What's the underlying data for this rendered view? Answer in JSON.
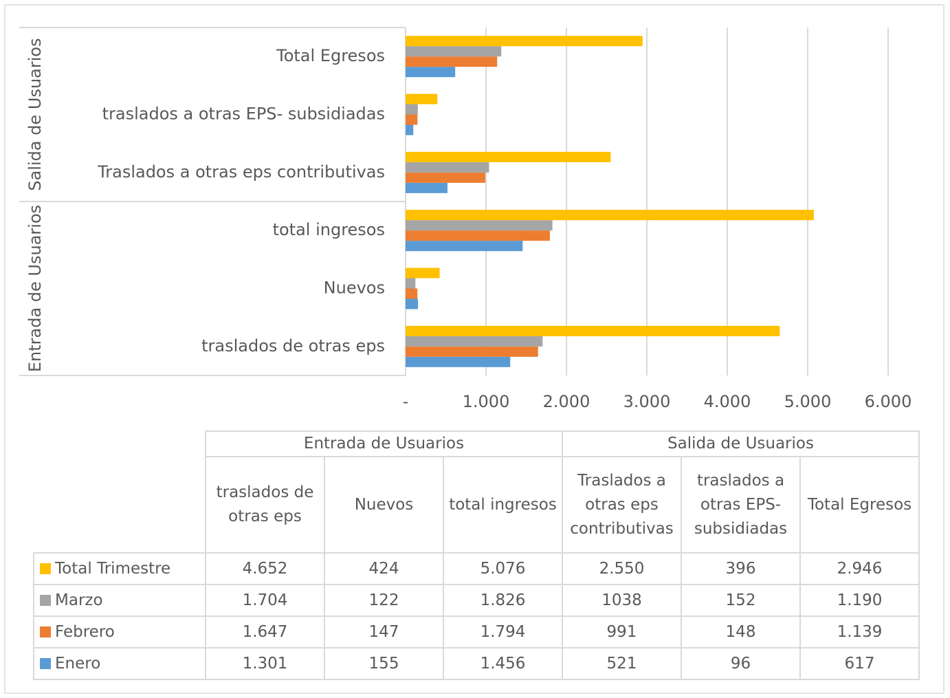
{
  "chart_data": {
    "type": "bar",
    "orientation": "horizontal",
    "groups": [
      {
        "name": "Entrada de Usuarios",
        "categories": [
          "traslados de otras eps",
          "Nuevos",
          "total ingresos"
        ]
      },
      {
        "name": "Salida de Usuarios",
        "categories": [
          "Traslados a otras eps contributivas",
          "traslados a otras EPS- subsidiadas",
          "Total Egresos"
        ]
      }
    ],
    "series": [
      {
        "name": "Enero",
        "color": "#5b9bd5",
        "values": [
          1301,
          155,
          1456,
          521,
          96,
          617
        ],
        "value_labels": [
          "1.301",
          "155",
          "1.456",
          "521",
          "96",
          "617"
        ]
      },
      {
        "name": "Febrero",
        "color": "#ed7d31",
        "values": [
          1647,
          147,
          1794,
          991,
          148,
          1139
        ],
        "value_labels": [
          "1.647",
          "147",
          "1.794",
          "991",
          "148",
          "1.139"
        ]
      },
      {
        "name": "Marzo",
        "color": "#a5a5a5",
        "values": [
          1704,
          122,
          1826,
          1038,
          152,
          1190
        ],
        "value_labels": [
          "1.704",
          "122",
          "1.826",
          "1038",
          "152",
          "1.190"
        ]
      },
      {
        "name": "Total Trimestre",
        "color": "#ffc000",
        "values": [
          4652,
          424,
          5076,
          2550,
          396,
          2946
        ],
        "value_labels": [
          "4.652",
          "424",
          "5.076",
          "2.550",
          "396",
          "2.946"
        ]
      }
    ],
    "xlim": [
      0,
      6000
    ],
    "xticks": [
      {
        "value": 0,
        "label": "-"
      },
      {
        "value": 1000,
        "label": "1.000"
      },
      {
        "value": 2000,
        "label": "2.000"
      },
      {
        "value": 3000,
        "label": "3.000"
      },
      {
        "value": 4000,
        "label": "4.000"
      },
      {
        "value": 5000,
        "label": "5.000"
      },
      {
        "value": 6000,
        "label": "6.000"
      }
    ],
    "grid": true,
    "data_table": true
  }
}
